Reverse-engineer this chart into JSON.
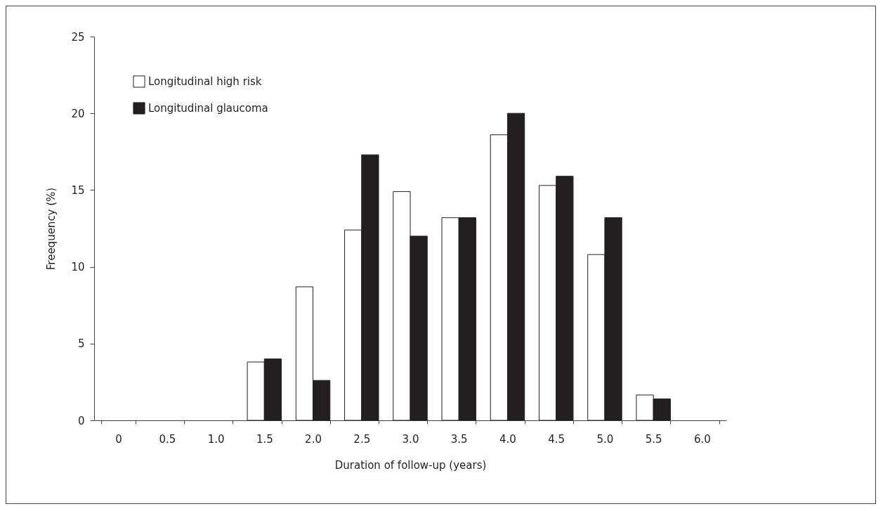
{
  "chart_data": {
    "type": "bar",
    "xlabel": "Duration of follow-up (years)",
    "ylabel": "Freequency (%)",
    "categories": [
      "0",
      "0.5",
      "1.0",
      "1.5",
      "2.0",
      "2.5",
      "3.0",
      "3.5",
      "4.0",
      "4.5",
      "5.0",
      "5.5",
      "6.0"
    ],
    "series": [
      {
        "name": "Longitudinal high risk",
        "color": "#ffffff",
        "values": [
          null,
          null,
          null,
          3.8,
          8.7,
          12.4,
          14.9,
          13.2,
          18.6,
          15.3,
          10.8,
          1.65,
          null
        ]
      },
      {
        "name": "Longitudinal glaucoma",
        "color": "#231f20",
        "values": [
          null,
          null,
          null,
          4.0,
          2.6,
          17.3,
          12.0,
          13.2,
          20.0,
          15.9,
          13.2,
          1.4,
          null
        ]
      }
    ],
    "ylim": [
      0,
      25
    ],
    "yticks": [
      0,
      5,
      10,
      15,
      20,
      25
    ],
    "grid": false,
    "legend": "top left"
  }
}
